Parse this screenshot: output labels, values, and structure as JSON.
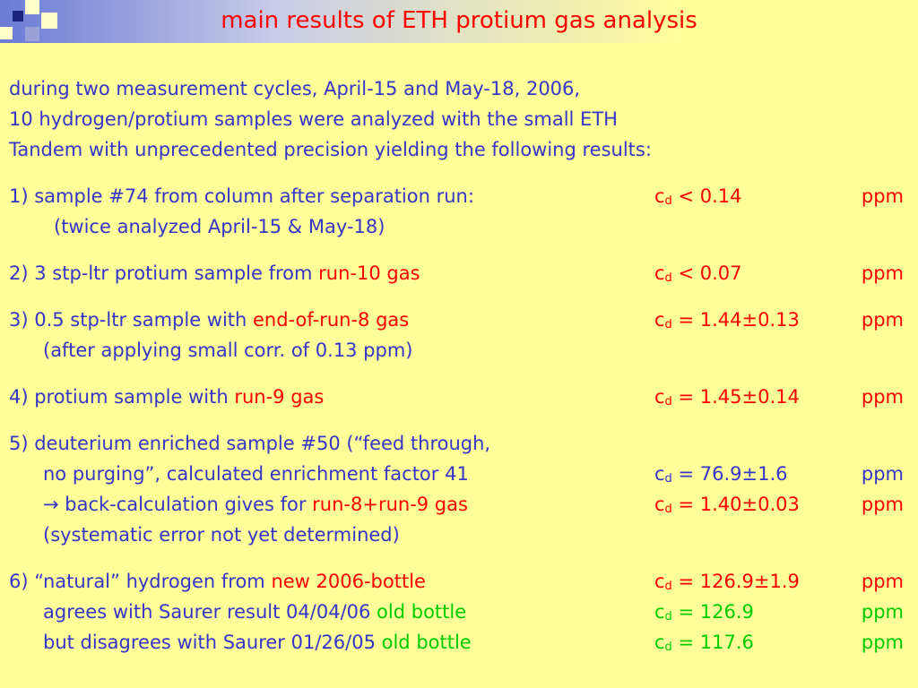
{
  "title": "main results of ETH protium gas analysis",
  "intro": [
    "during two measurement cycles, April-15 and May-18, 2006,",
    "10 hydrogen/protium samples were analyzed with the small ETH",
    "Tandem with unprecedented precision yielding the following results:"
  ],
  "items": [
    {
      "lines": [
        {
          "parts": [
            {
              "text": "1) sample #74 from column after separation run:",
              "color": "#3535c8"
            }
          ],
          "result": {
            "symbol": "c",
            "sub": "d",
            "value": " < 0.14",
            "unit": "ppm",
            "color": "#ff0000"
          }
        },
        {
          "parts": [
            {
              "text": "(twice analyzed April-15 & May-18)",
              "color": "#3535c8"
            }
          ]
        }
      ]
    },
    {
      "lines": [
        {
          "parts": [
            {
              "text": "2) 3 stp-ltr protium sample from ",
              "color": "#3535c8"
            },
            {
              "text": "run-10 gas",
              "color": "#ff0000"
            }
          ],
          "result": {
            "symbol": "c",
            "sub": "d",
            "value": " < 0.07",
            "unit": "ppm",
            "color": "#ff0000"
          }
        }
      ]
    },
    {
      "lines": [
        {
          "parts": [
            {
              "text": "3) 0.5 stp-ltr sample with ",
              "color": "#3535c8"
            },
            {
              "text": "end-of-run-8 gas",
              "color": "#ff0000"
            }
          ],
          "result": {
            "symbol": "c",
            "sub": "d",
            "value": " = 1.44±0.13",
            "unit": "ppm",
            "color": "#ff0000"
          }
        },
        {
          "parts": [
            {
              "text": "(after applying small corr. of 0.13 ppm)",
              "color": "#3535c8"
            }
          ]
        }
      ]
    },
    {
      "lines": [
        {
          "parts": [
            {
              "text": "4) protium sample with ",
              "color": "#3535c8"
            },
            {
              "text": "run-9 gas",
              "color": "#ff0000"
            }
          ],
          "result": {
            "symbol": "c",
            "sub": "d",
            "value": " = 1.45±0.14",
            "unit": "ppm",
            "color": "#ff0000"
          }
        }
      ]
    },
    {
      "lines": [
        {
          "parts": [
            {
              "text": "5) deuterium enriched sample #50 (“feed through,",
              "color": "#3535c8"
            }
          ]
        },
        {
          "parts": [
            {
              "text": "no purging”, calculated enrichment factor 41",
              "color": "#3535c8"
            }
          ],
          "result": {
            "symbol": "c",
            "sub": "d",
            "value": " = 76.9±1.6",
            "unit": "ppm",
            "color": "#3535c8"
          }
        },
        {
          "parts": [
            {
              "text": "→ back-calculation gives for ",
              "color": "#3535c8"
            },
            {
              "text": "run-8+run-9 gas",
              "color": "#ff0000"
            }
          ],
          "result": {
            "symbol": "c",
            "sub": "d",
            "value": " = 1.40±0.03",
            "unit": "ppm",
            "color": "#ff0000"
          }
        },
        {
          "parts": [
            {
              "text": "(systematic error not yet determined)",
              "color": "#3535c8"
            }
          ]
        }
      ]
    },
    {
      "lines": [
        {
          "parts": [
            {
              "text": "6) “natural” hydrogen from ",
              "color": "#3535c8"
            },
            {
              "text": "new 2006-bottle",
              "color": "#ff0000"
            }
          ],
          "result": {
            "symbol": "c",
            "sub": "d",
            "value": " = 126.9±1.9",
            "unit": "ppm",
            "color": "#ff0000"
          }
        },
        {
          "parts": [
            {
              "text": "agrees with Saurer result 04/04/06 ",
              "color": "#3535c8"
            },
            {
              "text": "old bottle",
              "color": "#00cc00"
            }
          ],
          "result": {
            "symbol": "c",
            "sub": "d",
            "value": " = 126.9",
            "unit": "ppm",
            "color": "#00cc00"
          }
        },
        {
          "parts": [
            {
              "text": "but disagrees with Saurer 01/26/05 ",
              "color": "#3535c8"
            },
            {
              "text": "old bottle",
              "color": "#00cc00"
            }
          ],
          "result": {
            "symbol": "c",
            "sub": "d",
            "value": " = 117.6",
            "unit": "ppm",
            "color": "#00cc00"
          }
        }
      ]
    }
  ]
}
